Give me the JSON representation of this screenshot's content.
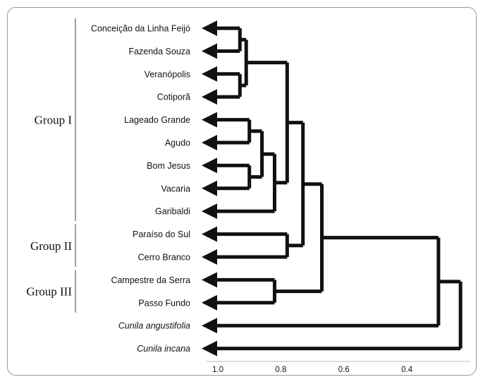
{
  "diagram": {
    "type": "dendrogram",
    "leaves": [
      {
        "name": "Conceição da Linha Feijó",
        "italic": false
      },
      {
        "name": "Fazenda Souza",
        "italic": false
      },
      {
        "name": "Veranópolis",
        "italic": false
      },
      {
        "name": "Cotiporã",
        "italic": false
      },
      {
        "name": "Lageado Grande",
        "italic": false
      },
      {
        "name": "Agudo",
        "italic": false
      },
      {
        "name": "Bom Jesus",
        "italic": false
      },
      {
        "name": "Vacaria",
        "italic": false
      },
      {
        "name": "Garibaldi",
        "italic": false
      },
      {
        "name": "Paraíso do Sul",
        "italic": false
      },
      {
        "name": "Cerro Branco",
        "italic": false
      },
      {
        "name": "Campestre da Serra",
        "italic": false
      },
      {
        "name": "Passo Fundo",
        "italic": false
      },
      {
        "name": "Cunila angustifolia",
        "italic": true
      },
      {
        "name": "Cunila incana",
        "italic": true
      }
    ],
    "groups": [
      {
        "label": "Group I",
        "from_leaf": 0,
        "to_leaf": 8
      },
      {
        "label": "Group II",
        "from_leaf": 9,
        "to_leaf": 10
      },
      {
        "label": "Group III",
        "from_leaf": 11,
        "to_leaf": 12
      }
    ],
    "merges": [
      {
        "a": "L0",
        "b": "L1",
        "height": 0.93
      },
      {
        "a": "L2",
        "b": "L3",
        "height": 0.93
      },
      {
        "a": "M0",
        "b": "M1",
        "height": 0.91
      },
      {
        "a": "L4",
        "b": "L5",
        "height": 0.9
      },
      {
        "a": "L6",
        "b": "L7",
        "height": 0.9
      },
      {
        "a": "M3",
        "b": "M4",
        "height": 0.86
      },
      {
        "a": "M5",
        "b": "L8",
        "height": 0.82
      },
      {
        "a": "M2",
        "b": "M6",
        "height": 0.78
      },
      {
        "a": "L9",
        "b": "L10",
        "height": 0.78
      },
      {
        "a": "M7",
        "b": "M8",
        "height": 0.73
      },
      {
        "a": "L11",
        "b": "L12",
        "height": 0.82
      },
      {
        "a": "M9",
        "b": "M10",
        "height": 0.67
      },
      {
        "a": "M11",
        "b": "L13",
        "height": 0.3
      },
      {
        "a": "M12",
        "b": "L14",
        "height": 0.23
      }
    ],
    "axis": {
      "ticks": [
        {
          "label": "1.0",
          "value": 1.0
        },
        {
          "label": "0.8",
          "value": 0.8
        },
        {
          "label": "0.6",
          "value": 0.6
        },
        {
          "label": "0.4",
          "value": 0.4
        }
      ]
    }
  },
  "colors": {
    "line": "#111111",
    "frame": "#9a9a9a"
  }
}
